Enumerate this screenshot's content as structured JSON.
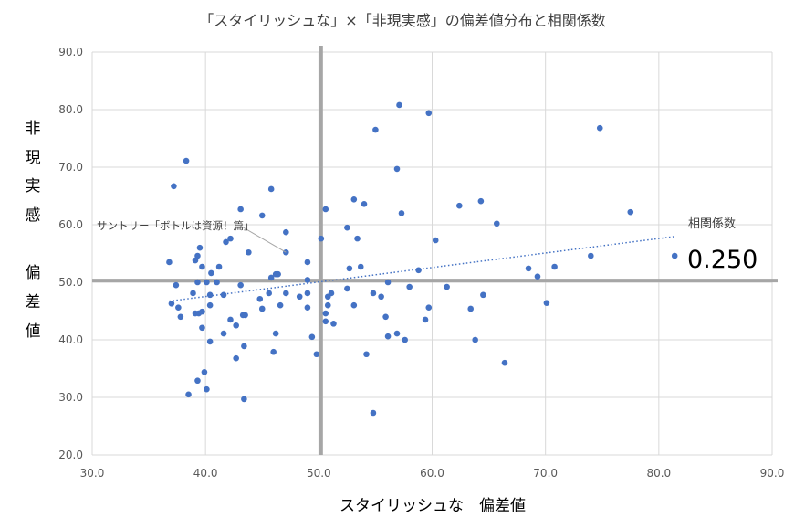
{
  "chart_data": {
    "type": "scatter",
    "title": "「スタイリッシュな」×「非現実感」の偏差値分布と相関係数",
    "xlabel": "スタイリッシュな　偏差値",
    "ylabel_top": [
      "非",
      "現",
      "実",
      "感"
    ],
    "ylabel_bottom": [
      "偏",
      "差",
      "値"
    ],
    "xlim": [
      30,
      90
    ],
    "ylim": [
      20,
      90
    ],
    "x_ticks": [
      "30.0",
      "40.0",
      "50.0",
      "60.0",
      "70.0",
      "80.0",
      "90.0"
    ],
    "y_ticks": [
      "20.0",
      "30.0",
      "40.0",
      "50.0",
      "60.0",
      "70.0",
      "80.0",
      "90.0"
    ],
    "grid": true,
    "point_color": "#4472C4",
    "mean_line_color": "#A6A6A6",
    "mean_x": 50.2,
    "mean_y": 50.3,
    "trendline": "linear, dotted",
    "correlation_label": "相関係数",
    "correlation_value": "0.250",
    "annotation": {
      "label": "サントリー「ボトルは資源！篇」",
      "x": 47.1,
      "y": 55.2
    },
    "points": [
      [
        38.3,
        71.1
      ],
      [
        37.2,
        66.7
      ],
      [
        45.8,
        66.2
      ],
      [
        43.1,
        62.7
      ],
      [
        45.0,
        61.6
      ],
      [
        47.1,
        58.7
      ],
      [
        50.6,
        62.7
      ],
      [
        50.2,
        57.6
      ],
      [
        42.2,
        57.6
      ],
      [
        41.8,
        57.0
      ],
      [
        39.5,
        56.0
      ],
      [
        43.8,
        55.2
      ],
      [
        47.1,
        55.2
      ],
      [
        39.3,
        54.6
      ],
      [
        39.1,
        53.8
      ],
      [
        36.8,
        53.5
      ],
      [
        49.0,
        53.5
      ],
      [
        39.7,
        52.7
      ],
      [
        41.2,
        52.7
      ],
      [
        40.5,
        51.6
      ],
      [
        46.2,
        51.4
      ],
      [
        46.4,
        51.4
      ],
      [
        45.8,
        50.8
      ],
      [
        49.0,
        50.4
      ],
      [
        37.4,
        49.5
      ],
      [
        39.3,
        50.0
      ],
      [
        40.1,
        50.0
      ],
      [
        41.0,
        50.0
      ],
      [
        43.1,
        49.5
      ],
      [
        38.9,
        48.1
      ],
      [
        40.4,
        47.8
      ],
      [
        41.6,
        47.8
      ],
      [
        44.8,
        47.1
      ],
      [
        45.6,
        48.1
      ],
      [
        47.1,
        48.1
      ],
      [
        48.3,
        47.5
      ],
      [
        49.0,
        48.1
      ],
      [
        37.0,
        46.3
      ],
      [
        37.6,
        45.6
      ],
      [
        40.4,
        46.0
      ],
      [
        45.0,
        45.4
      ],
      [
        46.6,
        46.0
      ],
      [
        49.0,
        45.6
      ],
      [
        39.1,
        44.6
      ],
      [
        39.4,
        44.6
      ],
      [
        39.7,
        44.9
      ],
      [
        37.8,
        44.0
      ],
      [
        42.2,
        43.5
      ],
      [
        43.3,
        44.3
      ],
      [
        43.5,
        44.3
      ],
      [
        42.7,
        42.5
      ],
      [
        39.7,
        42.1
      ],
      [
        41.6,
        41.1
      ],
      [
        46.2,
        41.1
      ],
      [
        49.4,
        40.5
      ],
      [
        40.4,
        39.7
      ],
      [
        43.4,
        38.9
      ],
      [
        46.0,
        37.9
      ],
      [
        49.8,
        37.5
      ],
      [
        42.7,
        36.8
      ],
      [
        39.9,
        34.4
      ],
      [
        39.3,
        32.9
      ],
      [
        40.1,
        31.4
      ],
      [
        38.5,
        30.5
      ],
      [
        43.4,
        29.7
      ],
      [
        57.1,
        80.8
      ],
      [
        59.7,
        79.4
      ],
      [
        55.0,
        76.5
      ],
      [
        56.9,
        69.7
      ],
      [
        53.1,
        64.4
      ],
      [
        54.0,
        63.6
      ],
      [
        57.3,
        62.0
      ],
      [
        52.5,
        59.5
      ],
      [
        53.4,
        57.6
      ],
      [
        60.3,
        57.3
      ],
      [
        52.7,
        52.4
      ],
      [
        53.7,
        52.7
      ],
      [
        58.8,
        52.1
      ],
      [
        52.5,
        48.9
      ],
      [
        58.0,
        49.2
      ],
      [
        61.3,
        49.2
      ],
      [
        56.1,
        50.0
      ],
      [
        54.8,
        48.1
      ],
      [
        55.5,
        47.5
      ],
      [
        51.1,
        48.1
      ],
      [
        50.8,
        47.5
      ],
      [
        50.8,
        46.0
      ],
      [
        53.1,
        46.0
      ],
      [
        50.6,
        44.6
      ],
      [
        50.6,
        43.2
      ],
      [
        51.3,
        42.8
      ],
      [
        55.9,
        44.0
      ],
      [
        59.7,
        45.6
      ],
      [
        59.4,
        43.5
      ],
      [
        63.4,
        45.4
      ],
      [
        64.5,
        47.8
      ],
      [
        56.1,
        40.6
      ],
      [
        56.9,
        41.1
      ],
      [
        57.6,
        40.0
      ],
      [
        63.8,
        40.0
      ],
      [
        54.2,
        37.5
      ],
      [
        66.4,
        36.0
      ],
      [
        54.8,
        27.3
      ],
      [
        62.4,
        63.3
      ],
      [
        64.3,
        64.1
      ],
      [
        65.7,
        60.2
      ],
      [
        68.5,
        52.4
      ],
      [
        69.3,
        51.0
      ],
      [
        70.8,
        52.7
      ],
      [
        70.1,
        46.4
      ],
      [
        74.8,
        76.8
      ],
      [
        77.5,
        62.2
      ],
      [
        74.0,
        54.6
      ],
      [
        81.4,
        54.6
      ]
    ]
  }
}
